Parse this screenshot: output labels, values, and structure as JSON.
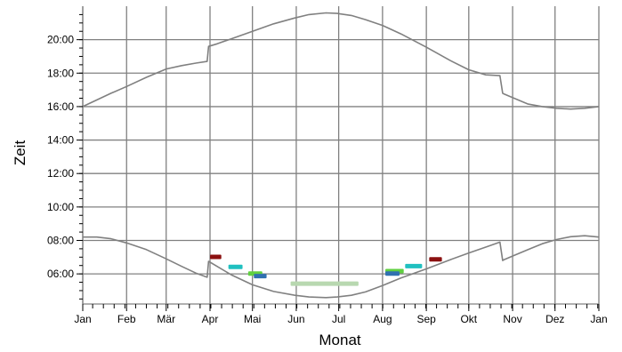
{
  "chart_data": {
    "type": "line",
    "xlabel": "Monat",
    "ylabel": "Zeit",
    "x_ticks": [
      "Jan",
      "Feb",
      "Mär",
      "Apr",
      "Mai",
      "Jun",
      "Jul",
      "Aug",
      "Sep",
      "Okt",
      "Nov",
      "Dez",
      "Jan"
    ],
    "y_ticks": [
      "06:00",
      "08:00",
      "10:00",
      "12:00",
      "14:00",
      "16:00",
      "18:00",
      "20:00"
    ],
    "xlim": [
      0,
      365
    ],
    "ylim": [
      4.2,
      22.0
    ],
    "y_unit": "hours",
    "grid": true,
    "series": [
      {
        "color": "#808080",
        "x": [
          0,
          10,
          20,
          31,
          45,
          59,
          70,
          80,
          88,
          89,
          95,
          105,
          120,
          135,
          150,
          160,
          172,
          180,
          190,
          200,
          212,
          225,
          243,
          260,
          273,
          285,
          295,
          297,
          298,
          305,
          315,
          325,
          335,
          345,
          355,
          365
        ],
        "y": [
          16.0,
          16.4,
          16.8,
          17.2,
          17.75,
          18.25,
          18.45,
          18.6,
          18.7,
          19.6,
          19.75,
          20.05,
          20.5,
          20.95,
          21.3,
          21.5,
          21.6,
          21.57,
          21.45,
          21.2,
          20.85,
          20.35,
          19.55,
          18.75,
          18.2,
          17.9,
          17.85,
          16.8,
          16.75,
          16.5,
          16.15,
          16.0,
          15.9,
          15.85,
          15.9,
          16.0
        ]
      },
      {
        "color": "#808080",
        "x": [
          0,
          10,
          20,
          31,
          45,
          59,
          70,
          80,
          88,
          89,
          95,
          105,
          120,
          135,
          150,
          160,
          172,
          180,
          190,
          200,
          212,
          225,
          243,
          260,
          273,
          285,
          295,
          297,
          298,
          305,
          315,
          325,
          335,
          345,
          355,
          365
        ],
        "y": [
          8.2,
          8.2,
          8.1,
          7.85,
          7.45,
          6.9,
          6.45,
          6.05,
          5.8,
          6.75,
          6.45,
          5.95,
          5.35,
          4.95,
          4.72,
          4.62,
          4.58,
          4.62,
          4.72,
          4.92,
          5.3,
          5.75,
          6.3,
          6.85,
          7.25,
          7.6,
          7.9,
          6.8,
          6.85,
          7.1,
          7.45,
          7.8,
          8.05,
          8.22,
          8.28,
          8.2
        ]
      }
    ],
    "markers": [
      {
        "color": "#8b1010",
        "x": [
          90,
          98
        ],
        "y": [
          7.0,
          7.15
        ]
      },
      {
        "color": "#20c0c0",
        "x": [
          103,
          113
        ],
        "y": [
          6.4,
          6.55
        ]
      },
      {
        "color": "#60d040",
        "x": [
          117,
          127
        ],
        "y": [
          6.0,
          6.15
        ]
      },
      {
        "color": "#3070b0",
        "x": [
          121,
          130
        ],
        "y": [
          5.85,
          6.0
        ]
      },
      {
        "color": "#b8d8b0",
        "x": [
          147,
          195
        ],
        "y": [
          5.3,
          5.55
        ]
      },
      {
        "color": "#60d040",
        "x": [
          214,
          227
        ],
        "y": [
          6.15,
          6.3
        ]
      },
      {
        "color": "#3070b0",
        "x": [
          214,
          224
        ],
        "y": [
          6.0,
          6.15
        ]
      },
      {
        "color": "#20c0c0",
        "x": [
          228,
          240
        ],
        "y": [
          6.45,
          6.6
        ]
      },
      {
        "color": "#8b1010",
        "x": [
          245,
          254
        ],
        "y": [
          6.85,
          7.0
        ]
      }
    ]
  }
}
